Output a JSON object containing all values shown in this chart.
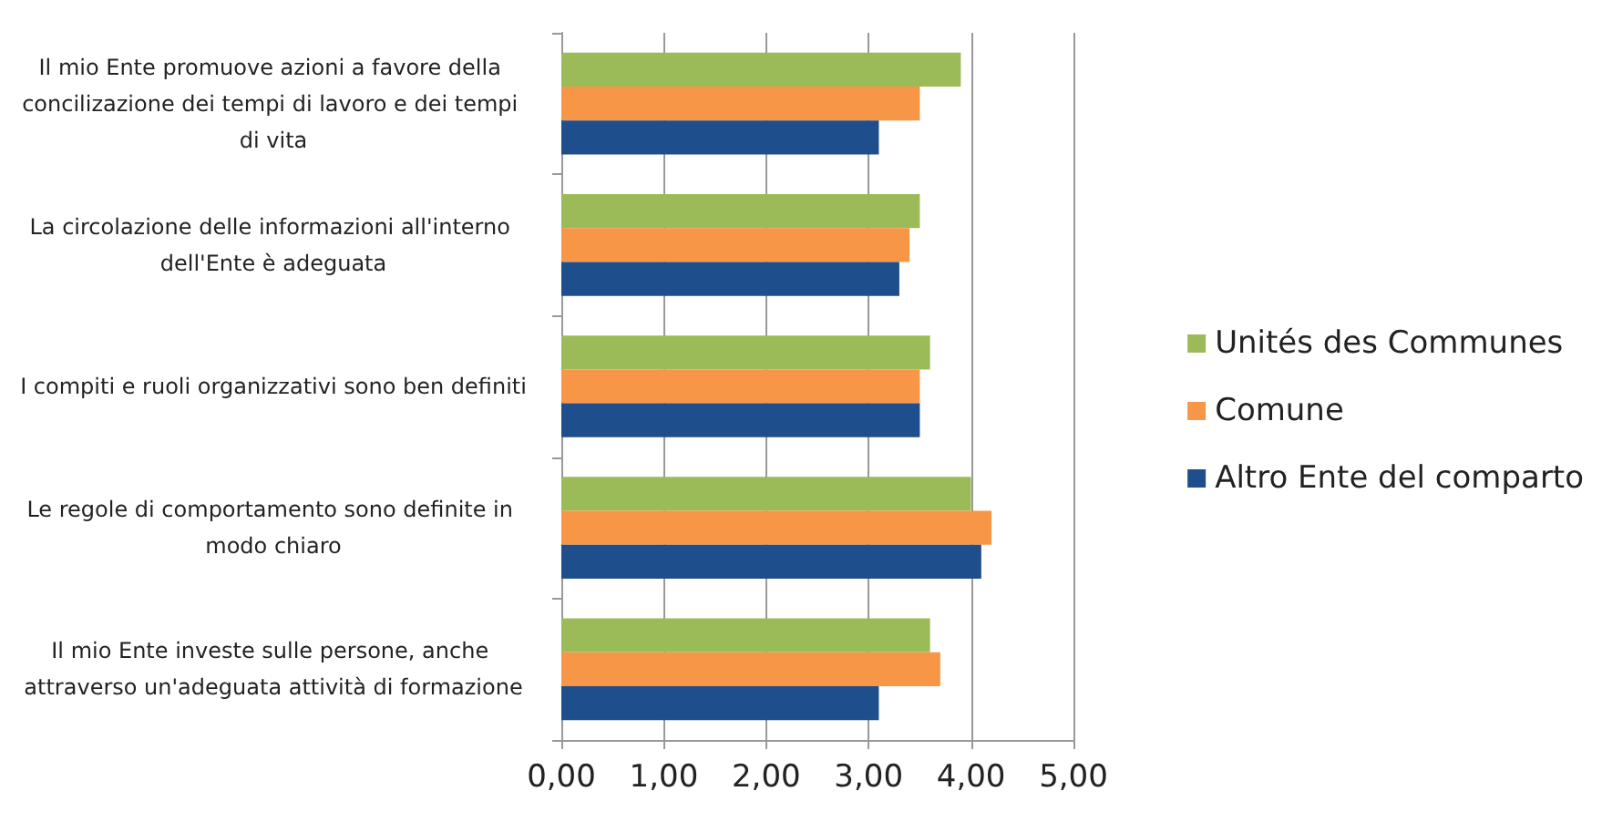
{
  "chart_data": {
    "type": "bar",
    "orientation": "horizontal",
    "categories": [
      "Il mio Ente promuove azioni a favore della concilizazione dei tempi di lavoro e dei tempi di vita",
      "La circolazione delle informazioni all'interno dell'Ente è adeguata",
      "I compiti e ruoli organizzativi sono ben definiti",
      "Le regole di comportamento sono definite in modo chiaro",
      "Il mio Ente investe sulle persone, anche attraverso un'adeguata attività di formazione"
    ],
    "series": [
      {
        "name": "Unités des Communes",
        "color": "#9bbb59",
        "values": [
          3.9,
          3.5,
          3.6,
          4.0,
          3.6
        ]
      },
      {
        "name": "Comune",
        "color": "#f79646",
        "values": [
          3.5,
          3.4,
          3.5,
          4.2,
          3.7
        ]
      },
      {
        "name": "Altro Ente del comparto",
        "color": "#1f4e8c",
        "values": [
          3.1,
          3.3,
          3.5,
          4.1,
          3.1
        ]
      }
    ],
    "xlim": [
      0,
      5
    ],
    "xticks": [
      {
        "value": 0,
        "label": "0,00"
      },
      {
        "value": 1,
        "label": "1,00"
      },
      {
        "value": 2,
        "label": "2,00"
      },
      {
        "value": 3,
        "label": "3,00"
      },
      {
        "value": 4,
        "label": "4,00"
      },
      {
        "value": 5,
        "label": "5,00"
      }
    ],
    "grid": "x",
    "legend": "right"
  }
}
